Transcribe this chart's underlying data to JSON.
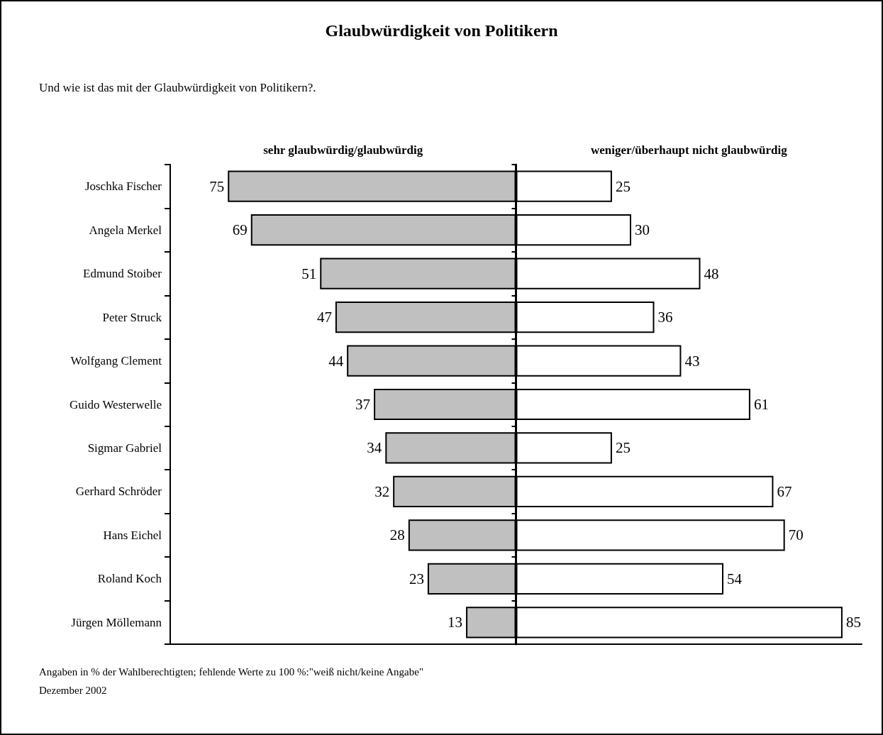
{
  "chart_data": [
    {
      "type": "bar",
      "orientation": "horizontal",
      "title": "Glaubwürdigkeit von Politikern",
      "subtitle": "Und wie ist das mit der Glaubwürdigkeit von Politikern?.",
      "categories": [
        "Joschka Fischer",
        "Angela Merkel",
        "Edmund Stoiber",
        "Peter Struck",
        "Wolfgang Clement",
        "Guido Westerwelle",
        "Sigmar Gabriel",
        "Gerhard Schröder",
        "Hans Eichel",
        "Roland Koch",
        "Jürgen Möllemann"
      ],
      "series": [
        {
          "name": "sehr glaubwürdig/glaubwürdig",
          "color": "#c0c0c0",
          "values": [
            75,
            69,
            51,
            47,
            44,
            37,
            34,
            32,
            28,
            23,
            13
          ]
        }
      ],
      "xlim": [
        90,
        0
      ],
      "tick_labels": "y",
      "grid": false,
      "data_labels": true,
      "annotations": [
        "Angaben in % der Wahlberechtigten; fehlende Werte zu 100 %:\"weiß nicht/keine Angabe\"",
        "Dezember 2002"
      ]
    },
    {
      "type": "bar",
      "orientation": "horizontal",
      "categories": [
        null,
        null,
        null,
        null,
        null,
        null,
        null,
        null,
        null,
        null,
        null
      ],
      "series": [
        {
          "name": "weniger/überhaupt nicht glaubwürdig",
          "color": "#ffffff",
          "values": [
            25,
            30,
            48,
            36,
            43,
            61,
            25,
            67,
            70,
            54,
            85
          ]
        }
      ],
      "xlim": [
        0,
        90
      ],
      "tick_labels": false,
      "grid": false,
      "data_labels": true
    }
  ]
}
